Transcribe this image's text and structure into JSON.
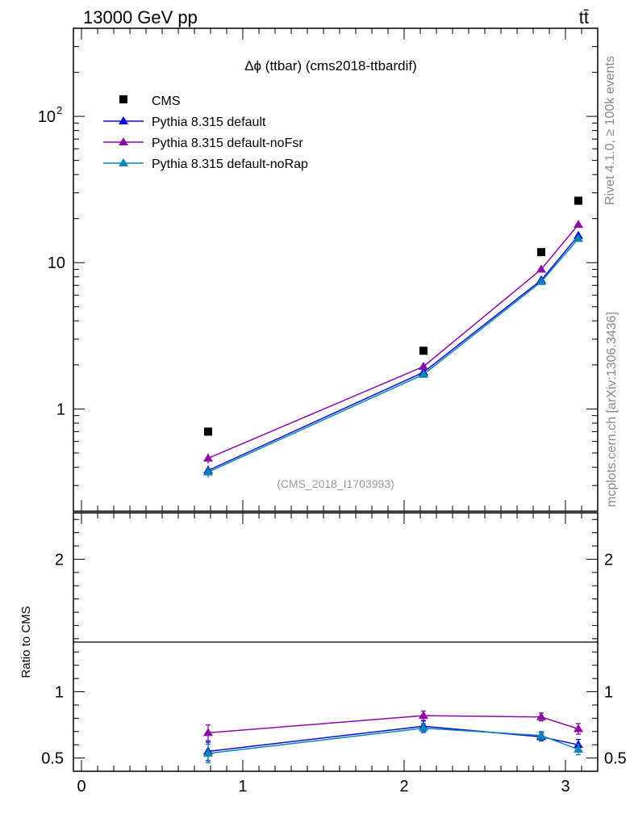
{
  "header": {
    "energy_label": "13000 GeV pp",
    "process_label": "tt̄"
  },
  "side_labels": {
    "rivet": "Rivet 4.1.0, ≥ 100k events",
    "mcplots": "mcplots.cern.ch [arXiv:1306.3436]"
  },
  "chart_data": {
    "type": "line",
    "title": "Δϕ (ttbar) (cms2018-ttbardif)",
    "watermark": "(CMS_2018_I1703993)",
    "xlabel": "",
    "ylabel": "",
    "ratio_ylabel": "Ratio to CMS",
    "xlim": [
      -0.05,
      3.2
    ],
    "ylim": [
      0.2,
      400
    ],
    "yscale": "log",
    "ratio_ylim": [
      0.4,
      2.35
    ],
    "x_tick_labels": [
      "0",
      "1",
      "2",
      "3"
    ],
    "y_tick_labels": [
      "1",
      "10",
      "10^2"
    ],
    "ratio_tick_labels": [
      "0.5",
      "1",
      "2"
    ],
    "legend_position": "top-left",
    "x": [
      0.785,
      2.12,
      2.85,
      3.08
    ],
    "data": {
      "name": "CMS",
      "color": "#000000",
      "values": [
        0.7,
        2.5,
        11.8,
        26.5
      ]
    },
    "series": [
      {
        "name": "Pythia 8.315 default",
        "color": "#0a0ad2",
        "values": [
          0.38,
          1.78,
          7.6,
          15.3
        ],
        "errors": [
          0.03,
          0.08,
          0.3,
          0.6
        ],
        "ratio": [
          0.55,
          0.74,
          0.66,
          0.6
        ],
        "ratio_errors": [
          0.07,
          0.04,
          0.03,
          0.04
        ]
      },
      {
        "name": "Pythia 8.315 default-noFsr",
        "color": "#8c0aa6",
        "values": [
          0.46,
          1.95,
          9.0,
          18.2
        ],
        "errors": [
          0.035,
          0.09,
          0.35,
          0.7
        ],
        "ratio": [
          0.69,
          0.82,
          0.81,
          0.72
        ],
        "ratio_errors": [
          0.06,
          0.035,
          0.03,
          0.04
        ]
      },
      {
        "name": "Pythia 8.315 default-noRap",
        "color": "#0a84b4",
        "values": [
          0.37,
          1.72,
          7.4,
          14.6
        ],
        "errors": [
          0.03,
          0.08,
          0.3,
          0.6
        ],
        "ratio": [
          0.535,
          0.725,
          0.67,
          0.565
        ],
        "ratio_errors": [
          0.07,
          0.035,
          0.03,
          0.04
        ]
      }
    ]
  }
}
